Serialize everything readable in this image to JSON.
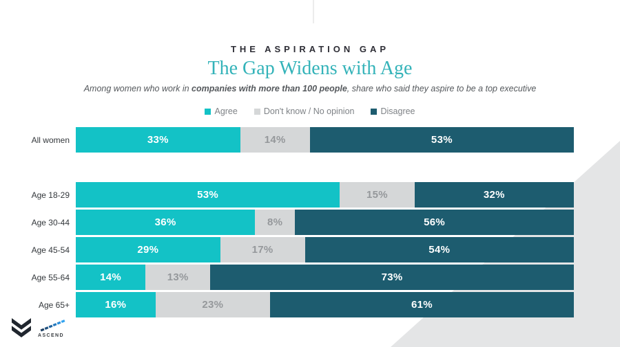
{
  "header": {
    "eyebrow": "THE ASPIRATION GAP",
    "title": "The Gap Widens with Age",
    "subtitle_prefix": "Among women who work in ",
    "subtitle_bold": "companies with more than 100 people",
    "subtitle_suffix": ", share who said they aspire to be a top executive"
  },
  "legend": [
    {
      "label": "Agree",
      "color": "#13c2c6"
    },
    {
      "label": "Don't know / No opinion",
      "color": "#d5d7d8"
    },
    {
      "label": "Disagree",
      "color": "#1d5c6f"
    }
  ],
  "chart_data": {
    "type": "bar",
    "stacked": true,
    "orientation": "horizontal",
    "title": "The Gap Widens with Age",
    "categories": [
      "All women",
      "Age 18-29",
      "Age 30-44",
      "Age 45-54",
      "Age 55-64",
      "Age 65+"
    ],
    "series": [
      {
        "name": "Agree",
        "values": [
          33,
          53,
          36,
          29,
          14,
          16
        ]
      },
      {
        "name": "Don't know / No opinion",
        "values": [
          14,
          15,
          8,
          17,
          13,
          23
        ]
      },
      {
        "name": "Disagree",
        "values": [
          53,
          32,
          56,
          54,
          73,
          61
        ]
      }
    ],
    "series_colors": [
      "#13c2c6",
      "#d5d7d8",
      "#1d5c6f"
    ],
    "value_label_colors": [
      "#ffffff",
      "#95989b",
      "#ffffff"
    ],
    "value_suffix": "%",
    "xlim": [
      0,
      100
    ],
    "legend_position": "top",
    "grid": false
  },
  "footer": {
    "brand_icon": "morning-consult-logo",
    "partner_logo_text": "ASCEND",
    "ascend_step_colors": [
      "#1d3f63",
      "#1d4f7e",
      "#1f639e",
      "#2478bd",
      "#2a8dd9",
      "#32a3f0"
    ]
  },
  "decor": {
    "triangle_color": "#e4e5e6",
    "topline_color": "#ececec"
  }
}
